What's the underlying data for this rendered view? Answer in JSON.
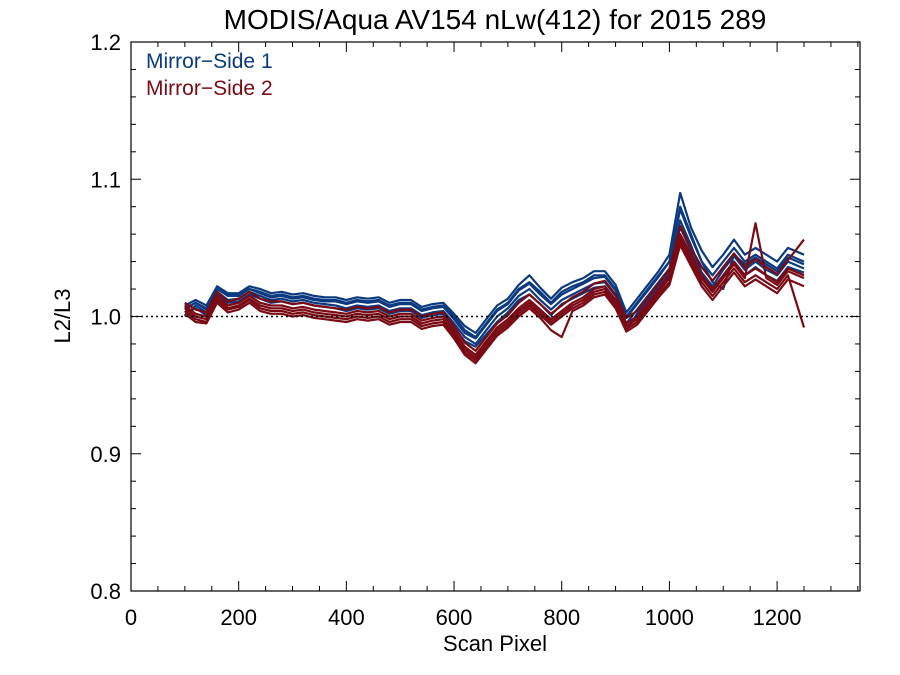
{
  "chart_data": {
    "type": "line",
    "title": "MODIS/Aqua AV154 nLw(412) for 2015 289",
    "xlabel": "Scan Pixel",
    "ylabel": "L2/L3",
    "xlim": [
      0,
      1354
    ],
    "ylim": [
      0.8,
      1.2
    ],
    "x_ticks": [
      0,
      200,
      400,
      600,
      800,
      1000,
      1200
    ],
    "x_tick_labels": [
      "0",
      "200",
      "400",
      "600",
      "800",
      "1000",
      "1200"
    ],
    "y_ticks": [
      0.8,
      0.9,
      1.0,
      1.1,
      1.2
    ],
    "y_tick_labels": [
      "0.8",
      "0.9",
      "1.0",
      "1.1",
      "1.2"
    ],
    "reference_line": 1.0,
    "grid": false,
    "legend_position": "top-left",
    "legend": [
      {
        "label": "Mirror−Side 1",
        "color": "#0b3a80"
      },
      {
        "label": "Mirror−Side 2",
        "color": "#7a0a14"
      }
    ],
    "x": [
      100,
      120,
      140,
      160,
      180,
      200,
      220,
      240,
      260,
      280,
      300,
      320,
      340,
      360,
      380,
      400,
      420,
      440,
      460,
      480,
      500,
      520,
      540,
      560,
      580,
      600,
      620,
      640,
      660,
      680,
      700,
      720,
      740,
      760,
      780,
      800,
      820,
      840,
      860,
      880,
      900,
      920,
      940,
      960,
      980,
      1000,
      1020,
      1040,
      1060,
      1080,
      1100,
      1120,
      1140,
      1160,
      1180,
      1200,
      1220,
      1250
    ],
    "series": [
      {
        "name": "Mirror−Side 1",
        "color": "#0b3a80",
        "values": [
          1.005,
          1.01,
          1.005,
          1.02,
          1.015,
          1.015,
          1.02,
          1.018,
          1.015,
          1.016,
          1.014,
          1.015,
          1.013,
          1.012,
          1.012,
          1.01,
          1.012,
          1.011,
          1.012,
          1.008,
          1.01,
          1.01,
          1.005,
          1.007,
          1.008,
          1.0,
          0.99,
          0.985,
          0.995,
          1.005,
          1.01,
          1.02,
          1.025,
          1.018,
          1.01,
          1.018,
          1.022,
          1.025,
          1.03,
          1.03,
          1.02,
          1.0,
          1.01,
          1.02,
          1.03,
          1.04,
          1.08,
          1.06,
          1.04,
          1.03,
          1.04,
          1.05,
          1.04,
          1.045,
          1.04,
          1.035,
          1.045,
          1.04
        ]
      },
      {
        "name": "",
        "color": "#0b3a80",
        "values": [
          1.0,
          1.008,
          1.003,
          1.018,
          1.012,
          1.013,
          1.018,
          1.015,
          1.012,
          1.013,
          1.011,
          1.012,
          1.01,
          1.009,
          1.008,
          1.006,
          1.008,
          1.007,
          1.008,
          1.004,
          1.006,
          1.006,
          1.001,
          1.003,
          1.004,
          0.995,
          0.985,
          0.98,
          0.99,
          1.0,
          1.006,
          1.015,
          1.02,
          1.012,
          1.005,
          1.012,
          1.016,
          1.02,
          1.024,
          1.025,
          1.015,
          0.995,
          1.005,
          1.015,
          1.025,
          1.035,
          1.07,
          1.052,
          1.032,
          1.022,
          1.034,
          1.044,
          1.034,
          1.04,
          1.034,
          1.03,
          1.04,
          1.035
        ]
      },
      {
        "name": "",
        "color": "#0b3a80",
        "values": [
          1.008,
          1.012,
          1.008,
          1.022,
          1.017,
          1.017,
          1.022,
          1.02,
          1.017,
          1.018,
          1.016,
          1.017,
          1.015,
          1.014,
          1.014,
          1.012,
          1.014,
          1.013,
          1.014,
          1.01,
          1.012,
          1.012,
          1.007,
          1.009,
          1.01,
          1.002,
          0.993,
          0.988,
          0.998,
          1.008,
          1.013,
          1.023,
          1.03,
          1.021,
          1.013,
          1.021,
          1.025,
          1.028,
          1.033,
          1.033,
          1.023,
          1.003,
          1.013,
          1.023,
          1.033,
          1.045,
          1.09,
          1.065,
          1.048,
          1.036,
          1.045,
          1.056,
          1.045,
          1.05,
          1.045,
          1.04,
          1.05,
          1.045
        ]
      },
      {
        "name": "",
        "color": "#0b3a80",
        "values": [
          1.003,
          1.006,
          1.001,
          1.016,
          1.01,
          1.011,
          1.016,
          1.013,
          1.01,
          1.011,
          1.009,
          1.01,
          1.008,
          1.007,
          1.006,
          1.004,
          1.006,
          1.005,
          1.006,
          1.002,
          1.004,
          1.004,
          0.999,
          1.001,
          1.002,
          0.992,
          0.982,
          0.978,
          0.987,
          0.996,
          1.003,
          1.012,
          1.016,
          1.009,
          1.001,
          1.009,
          1.013,
          1.017,
          1.021,
          1.022,
          1.012,
          0.99,
          1.002,
          1.012,
          1.022,
          1.032,
          1.065,
          1.048,
          1.028,
          1.018,
          1.03,
          1.04,
          1.03,
          1.036,
          1.03,
          1.026,
          1.036,
          1.032
        ]
      },
      {
        "name": "",
        "color": "#0b3a80",
        "values": [
          1.006,
          1.01,
          1.006,
          1.02,
          1.016,
          1.016,
          1.02,
          1.017,
          1.014,
          1.015,
          1.013,
          1.014,
          1.012,
          1.011,
          1.011,
          1.009,
          1.011,
          1.01,
          1.011,
          1.007,
          1.009,
          1.009,
          1.004,
          1.006,
          1.007,
          0.998,
          0.988,
          0.984,
          0.994,
          1.004,
          1.009,
          1.019,
          1.024,
          1.016,
          1.009,
          1.016,
          1.02,
          1.024,
          1.028,
          1.029,
          1.019,
          0.999,
          1.009,
          1.019,
          1.029,
          1.04,
          1.078,
          1.058,
          1.04,
          1.025,
          1.02,
          1.045,
          1.038,
          1.043,
          1.038,
          1.033,
          1.043,
          1.038
        ]
      },
      {
        "name": "Mirror−Side 2",
        "color": "#7a0a14",
        "values": [
          1.008,
          1.002,
          1.0,
          1.015,
          1.008,
          1.01,
          1.015,
          1.01,
          1.008,
          1.008,
          1.006,
          1.007,
          1.005,
          1.004,
          1.003,
          1.002,
          1.004,
          1.003,
          1.004,
          1.0,
          1.002,
          1.002,
          0.997,
          0.999,
          1.0,
          0.99,
          0.978,
          0.972,
          0.982,
          0.992,
          0.998,
          1.006,
          1.012,
          1.005,
          0.998,
          1.004,
          1.01,
          1.014,
          1.02,
          1.022,
          1.012,
          0.995,
          1.0,
          1.01,
          1.02,
          1.03,
          1.06,
          1.045,
          1.03,
          1.02,
          1.03,
          1.04,
          1.03,
          1.035,
          1.03,
          1.025,
          1.035,
          1.03
        ]
      },
      {
        "name": "",
        "color": "#7a0a14",
        "values": [
          1.004,
          0.998,
          0.996,
          1.012,
          1.005,
          1.007,
          1.012,
          1.006,
          1.004,
          1.004,
          1.002,
          1.003,
          1.001,
          1.0,
          0.999,
          0.998,
          1.0,
          0.999,
          1.0,
          0.996,
          0.998,
          0.998,
          0.993,
          0.995,
          0.996,
          0.986,
          0.974,
          0.968,
          0.978,
          0.988,
          0.994,
          1.002,
          1.008,
          1.001,
          0.994,
          1.0,
          1.006,
          1.01,
          1.016,
          1.018,
          1.008,
          0.991,
          0.996,
          1.006,
          1.016,
          1.025,
          1.055,
          1.04,
          1.025,
          1.015,
          1.025,
          1.035,
          1.025,
          1.03,
          1.025,
          1.02,
          1.03,
          0.992
        ]
      },
      {
        "name": "",
        "color": "#7a0a14",
        "values": [
          1.01,
          1.005,
          1.003,
          1.018,
          1.011,
          1.013,
          1.018,
          1.013,
          1.011,
          1.011,
          1.009,
          1.01,
          1.008,
          1.007,
          1.006,
          1.005,
          1.007,
          1.006,
          1.007,
          1.003,
          1.005,
          1.005,
          1.0,
          1.002,
          1.003,
          0.993,
          0.981,
          0.975,
          0.985,
          0.995,
          1.001,
          1.01,
          1.016,
          1.009,
          1.002,
          1.008,
          1.014,
          1.018,
          1.024,
          1.026,
          1.016,
          0.999,
          1.004,
          1.014,
          1.024,
          1.034,
          1.066,
          1.05,
          1.036,
          1.026,
          1.036,
          1.046,
          1.036,
          1.042,
          1.036,
          1.031,
          1.041,
          1.056
        ]
      },
      {
        "name": "",
        "color": "#7a0a14",
        "values": [
          1.006,
          1.0,
          0.998,
          1.013,
          1.006,
          1.008,
          1.013,
          1.008,
          1.006,
          1.006,
          1.004,
          1.005,
          1.003,
          1.002,
          1.001,
          1.0,
          1.002,
          1.001,
          1.002,
          0.998,
          1.0,
          1.0,
          0.995,
          0.997,
          0.998,
          0.988,
          0.976,
          0.97,
          0.98,
          0.99,
          0.996,
          1.004,
          1.01,
          1.003,
          0.996,
          1.002,
          1.008,
          1.012,
          1.018,
          1.02,
          1.01,
          0.993,
          0.998,
          1.008,
          1.018,
          1.028,
          1.058,
          1.042,
          1.028,
          1.018,
          1.028,
          1.038,
          1.028,
          1.068,
          1.028,
          1.023,
          1.033,
          1.028
        ]
      },
      {
        "name": "",
        "color": "#7a0a14",
        "values": [
          1.002,
          0.996,
          0.995,
          1.01,
          1.003,
          1.005,
          1.01,
          1.004,
          1.002,
          1.002,
          1.0,
          1.001,
          0.999,
          0.998,
          0.997,
          0.996,
          0.998,
          0.997,
          0.998,
          0.994,
          0.996,
          0.996,
          0.991,
          0.993,
          0.994,
          0.984,
          0.972,
          0.966,
          0.976,
          0.986,
          0.992,
          1.0,
          1.006,
          0.999,
          0.99,
          0.985,
          1.004,
          1.008,
          1.014,
          1.016,
          1.006,
          0.989,
          0.994,
          1.004,
          1.014,
          1.023,
          1.052,
          1.037,
          1.022,
          1.012,
          1.022,
          1.032,
          1.022,
          1.027,
          1.022,
          1.017,
          1.027,
          1.022
        ]
      }
    ]
  }
}
